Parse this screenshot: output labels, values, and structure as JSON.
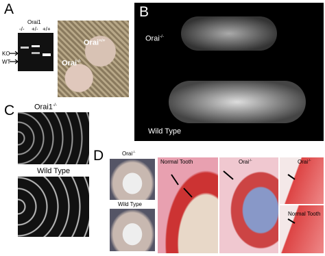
{
  "panel_a": {
    "label": "A",
    "gel_title": "Orai1",
    "lanes": [
      "-/-",
      "+/-",
      "+/+"
    ],
    "bands": [
      "KO",
      "WT"
    ],
    "photo_wt": {
      "base": "Orai",
      "sup": "+/+"
    },
    "photo_ko": {
      "base": "Orai",
      "sup": "-/-"
    }
  },
  "panel_b": {
    "label": "B",
    "top_label": {
      "base": "Orai",
      "sup": "-/-"
    },
    "bottom_label": "Wild Type"
  },
  "panel_c": {
    "label": "C",
    "top_label": {
      "base": "Orai1",
      "sup": "-/-"
    },
    "bottom_label": "Wild Type"
  },
  "panel_d": {
    "label": "D",
    "photo_ko": {
      "base": "Orai",
      "sup": "-/-"
    },
    "photo_wt": "Wild Type",
    "histology_wt": "Normal Tooth",
    "histology_ko": {
      "base": "Orai",
      "sup": "-/-"
    },
    "inset_ko": {
      "base": "Orai",
      "sup": "-/-"
    },
    "inset_wt": "Normal Tooth"
  }
}
